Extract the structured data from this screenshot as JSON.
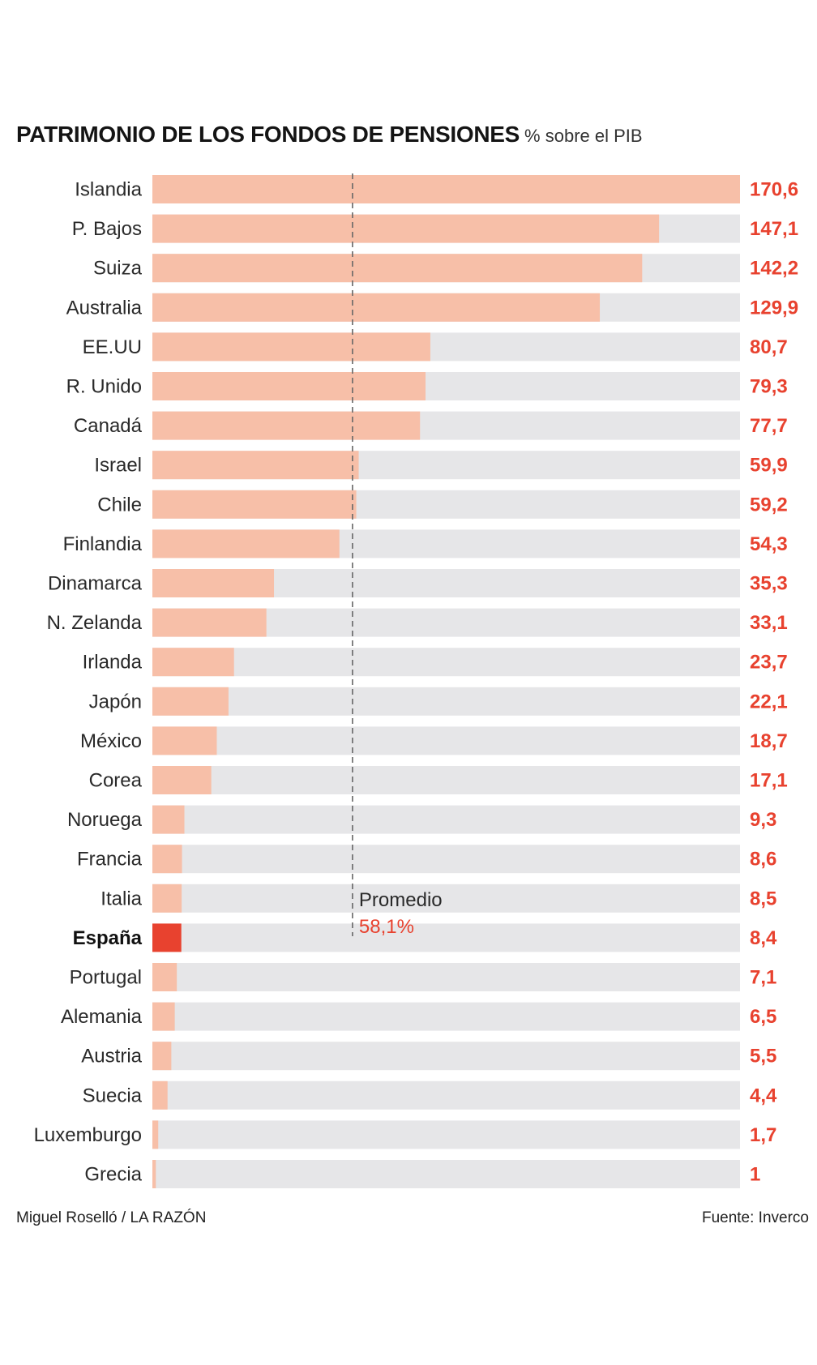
{
  "header": {
    "title": "PATRIMONIO DE LOS FONDOS DE PENSIONES",
    "subtitle": "% sobre el PIB"
  },
  "footer": {
    "author": "Miguel Roselló / LA RAZÓN",
    "source": "Fuente: Inverco"
  },
  "colors": {
    "bar": "#f7bfa8",
    "highlight": "#e8422f",
    "track": "#e6e6e8",
    "value_text": "#e8422f",
    "average_line": "#666666"
  },
  "chart_data": {
    "type": "bar",
    "orientation": "horizontal",
    "title": "PATRIMONIO DE LOS FONDOS DE PENSIONES",
    "subtitle": "% sobre el PIB",
    "categories": [
      "Islandia",
      "P. Bajos",
      "Suiza",
      "Australia",
      "EE.UU",
      "R. Unido",
      "Canadá",
      "Israel",
      "Chile",
      "Finlandia",
      "Dinamarca",
      "N. Zelanda",
      "Irlanda",
      "Japón",
      "México",
      "Corea",
      "Noruega",
      "Francia",
      "Italia",
      "España",
      "Portugal",
      "Alemania",
      "Austria",
      "Suecia",
      "Luxemburgo",
      "Grecia"
    ],
    "values": [
      170.6,
      147.1,
      142.2,
      129.9,
      80.7,
      79.3,
      77.7,
      59.9,
      59.2,
      54.3,
      35.3,
      33.1,
      23.7,
      22.1,
      18.7,
      17.1,
      9.3,
      8.6,
      8.5,
      8.4,
      7.1,
      6.5,
      5.5,
      4.4,
      1.7,
      1
    ],
    "value_labels": [
      "170,6",
      "147,1",
      "142,2",
      "129,9",
      "80,7",
      "79,3",
      "77,7",
      "59,9",
      "59,2",
      "54,3",
      "35,3",
      "33,1",
      "23,7",
      "22,1",
      "18,7",
      "17,1",
      "9,3",
      "8,6",
      "8,5",
      "8,4",
      "7,1",
      "6,5",
      "5,5",
      "4,4",
      "1,7",
      "1"
    ],
    "highlight": "España",
    "xlim": [
      0,
      170.6
    ],
    "average": {
      "value": 58.1,
      "label": "Promedio",
      "value_label": "58,1%"
    },
    "grid": false,
    "legend": "none"
  }
}
